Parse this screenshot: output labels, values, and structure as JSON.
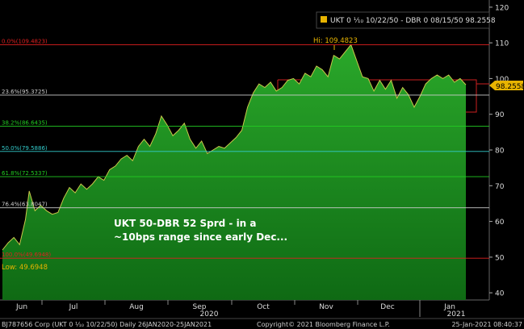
{
  "chart_data": {
    "type": "area",
    "legend": {
      "label": "UKT 0 ⅒ 10/22/50 - DBR 0 08/15/50 98.2558",
      "color": "#e8b400"
    },
    "y_axis": {
      "position": "right",
      "ylim": [
        38,
        122
      ],
      "ticks": [
        40,
        50,
        60,
        70,
        80,
        90,
        100,
        110,
        120
      ]
    },
    "x_axis": {
      "months": [
        "Jun",
        "Jul",
        "Aug",
        "Sep",
        "Oct",
        "Nov",
        "Dec",
        "Jan"
      ],
      "years": [
        "2020",
        "2021"
      ]
    },
    "series": [
      {
        "color": "#1f8f1f",
        "x": [
          0,
          3,
          6,
          9,
          12,
          14,
          17,
          20,
          23,
          26,
          29,
          32,
          35,
          38,
          41,
          44,
          47,
          50,
          53,
          56,
          59,
          62,
          65,
          68,
          71,
          74,
          77,
          80,
          83,
          86,
          89,
          92,
          95,
          98,
          101,
          104,
          107,
          110,
          113,
          116,
          119,
          122,
          125,
          128,
          131,
          134,
          137,
          140,
          143,
          146,
          149,
          152,
          155,
          158,
          161,
          164,
          167,
          170,
          173,
          176,
          179,
          182,
          185,
          188,
          191,
          194,
          197,
          200,
          203,
          206,
          209,
          212,
          215,
          218,
          221,
          224,
          227,
          230,
          233,
          236,
          239,
          242
        ],
        "values": [
          52.0,
          54.0,
          55.5,
          53.5,
          60.5,
          68.5,
          63.0,
          64.5,
          63.0,
          62.0,
          62.5,
          66.5,
          69.5,
          68.0,
          70.5,
          69.0,
          70.5,
          72.5,
          71.5,
          74.5,
          75.5,
          77.5,
          78.5,
          77.0,
          81.0,
          83.0,
          81.0,
          84.5,
          89.5,
          87.0,
          84.0,
          85.5,
          87.5,
          83.0,
          80.5,
          82.5,
          79.0,
          80.0,
          81.0,
          80.5,
          82.0,
          83.5,
          85.5,
          92.0,
          96.0,
          98.5,
          97.5,
          99.0,
          96.5,
          97.5,
          99.5,
          100.0,
          98.5,
          101.5,
          100.5,
          103.5,
          102.5,
          100.5,
          106.5,
          105.5,
          107.5,
          109.5,
          105.0,
          100.5,
          100.0,
          96.5,
          99.5,
          97.0,
          99.5,
          94.5,
          97.5,
          95.5,
          92.0,
          95.0,
          98.5,
          100.0,
          101.0,
          100.0,
          101.0,
          99.0,
          100.0,
          98.26
        ]
      }
    ],
    "annotations": {
      "high": "Hi: 109.4823",
      "low": "Low: 49.6948",
      "last_value": "98.2558",
      "note_line1": "UKT 50-DBR 52 Sprd - in a",
      "note_line2": "~10bps range since early Dec..."
    },
    "fibonacci": [
      {
        "label": "0.0%(109.4823)",
        "value": 109.4823,
        "color": "#e02020"
      },
      {
        "label": "23.6%(95.3725)",
        "value": 95.3725,
        "color": "#cccccc"
      },
      {
        "label": "38.2%(86.6435)",
        "value": 86.6435,
        "color": "#22cc22"
      },
      {
        "label": "50.0%(79.5886)",
        "value": 79.5886,
        "color": "#33cccc"
      },
      {
        "label": "61.8%(72.5337)",
        "value": 72.5337,
        "color": "#22cc22"
      },
      {
        "label": "76.4%(63.8047)",
        "value": 63.8047,
        "color": "#cccccc"
      },
      {
        "label": "100.0%(49.6948)",
        "value": 49.6948,
        "color": "#e02020"
      }
    ]
  },
  "footer": {
    "left": "BJ787656 Corp (UKT 0 ⅒ 10/22/50)  Daily 26JAN2020-25JAN2021",
    "center": "Copyright© 2021 Bloomberg Finance L.P.",
    "right": "25-Jan-2021 08:40:37"
  }
}
